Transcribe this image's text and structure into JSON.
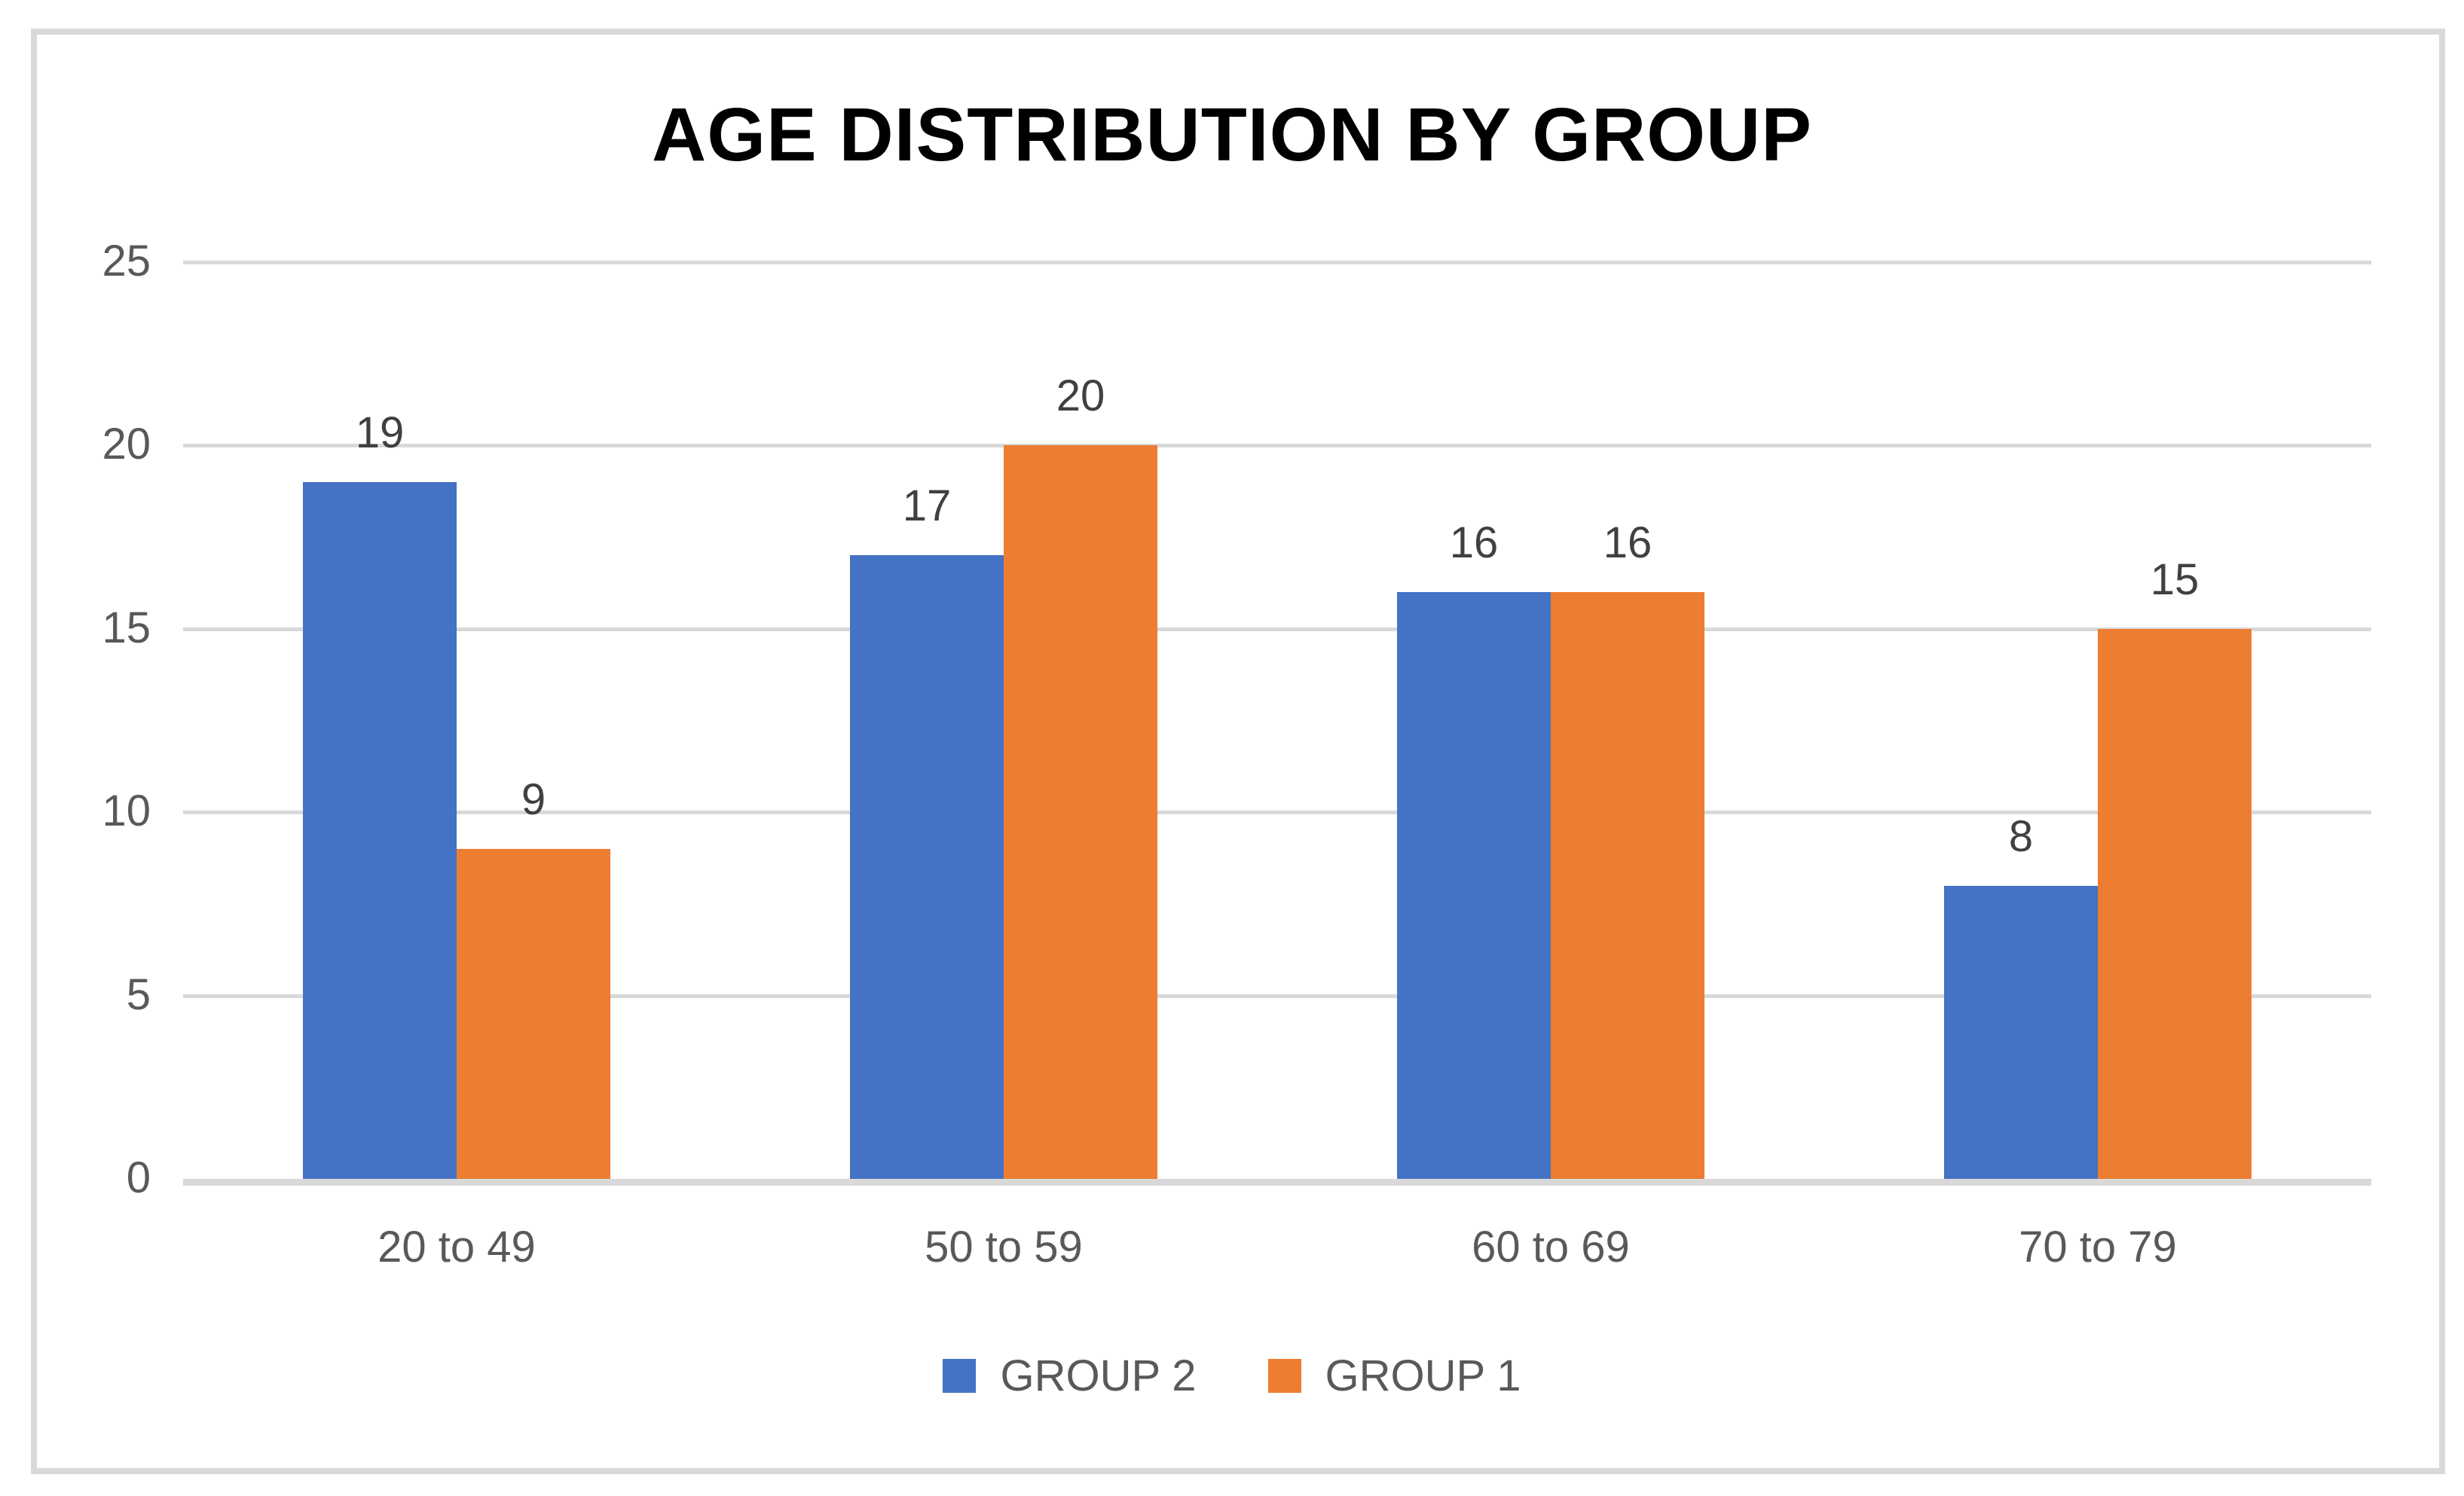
{
  "window": {
    "background": "#ffffff",
    "frame_border_color": "#d9d9d9"
  },
  "chart_data": {
    "type": "bar",
    "title": "AGE DISTRIBUTION BY GROUP",
    "categories": [
      "20 to 49",
      "50 to 59",
      "60 to 69",
      "70 to 79"
    ],
    "series": [
      {
        "name": "GROUP 2",
        "color": "#4472C4",
        "values": [
          19,
          17,
          16,
          8
        ]
      },
      {
        "name": "GROUP 1",
        "color": "#ED7D31",
        "values": [
          9,
          20,
          16,
          15
        ]
      }
    ],
    "data_labels_shown": true,
    "data_labels": [
      [
        "19",
        "17",
        "16",
        "8"
      ],
      [
        "9",
        "20",
        "16",
        "15"
      ]
    ],
    "xlabel": "",
    "ylabel": "",
    "ylim": [
      0,
      25
    ],
    "yticks": [
      0,
      5,
      10,
      15,
      20,
      25
    ],
    "grid": "horizontal",
    "gridline_color": "#d9d9d9",
    "axis_line_color": "#d9d9d9",
    "legend_position": "bottom",
    "legend_entries": [
      "GROUP 2",
      "GROUP 1"
    ],
    "title_color": "#595959",
    "tick_label_color": "#595959",
    "category_label_color": "#595959",
    "data_label_color": "#404040",
    "legend_label_color": "#595959"
  }
}
